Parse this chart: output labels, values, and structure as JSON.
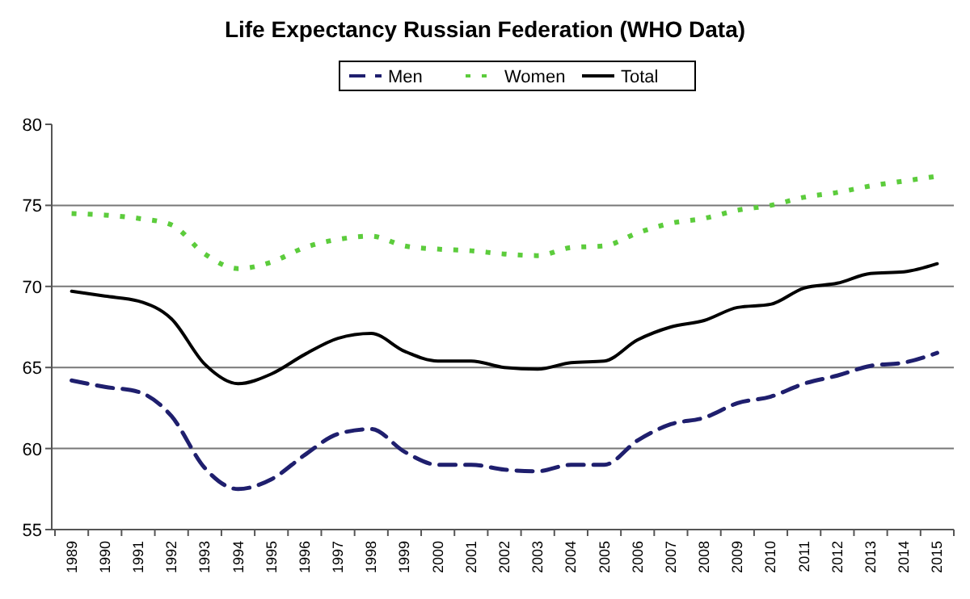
{
  "chart_data": {
    "type": "line",
    "title": "Life Expectancy Russian Federation (WHO Data)",
    "categories": [
      "1989",
      "1990",
      "1991",
      "1992",
      "1993",
      "1994",
      "1995",
      "1996",
      "1997",
      "1998",
      "1999",
      "2000",
      "2001",
      "2002",
      "2003",
      "2004",
      "2005",
      "2006",
      "2007",
      "2008",
      "2009",
      "2010",
      "2011",
      "2012",
      "2013",
      "2014",
      "2015"
    ],
    "series": [
      {
        "name": "Men",
        "color": "#1f1f6e",
        "line_style": "dashed",
        "values": [
          64.2,
          63.8,
          63.5,
          62.0,
          58.8,
          57.5,
          58.1,
          59.6,
          60.9,
          61.2,
          59.8,
          59.0,
          59.0,
          58.7,
          58.6,
          59.0,
          59.0,
          60.5,
          61.5,
          61.9,
          62.8,
          63.2,
          64.0,
          64.5,
          65.1,
          65.3,
          65.9
        ]
      },
      {
        "name": "Women",
        "color": "#5ccc3c",
        "line_style": "dotted",
        "values": [
          74.5,
          74.4,
          74.2,
          73.8,
          72.0,
          71.1,
          71.5,
          72.4,
          72.9,
          73.1,
          72.5,
          72.3,
          72.2,
          72.0,
          71.9,
          72.4,
          72.5,
          73.3,
          73.9,
          74.2,
          74.7,
          75.0,
          75.5,
          75.8,
          76.2,
          76.5,
          76.8
        ]
      },
      {
        "name": "Total",
        "color": "#000000",
        "line_style": "solid",
        "values": [
          69.7,
          69.4,
          69.1,
          68.0,
          65.2,
          64.0,
          64.6,
          65.8,
          66.8,
          67.1,
          66.0,
          65.4,
          65.4,
          65.0,
          64.9,
          65.3,
          65.4,
          66.7,
          67.5,
          67.9,
          68.7,
          68.9,
          69.9,
          70.2,
          70.8,
          70.9,
          71.4
        ]
      }
    ],
    "ylim": [
      55,
      80
    ],
    "yticks": [
      55,
      60,
      65,
      70,
      75,
      80
    ],
    "grid": "y",
    "legend": "top",
    "marker": "none"
  }
}
